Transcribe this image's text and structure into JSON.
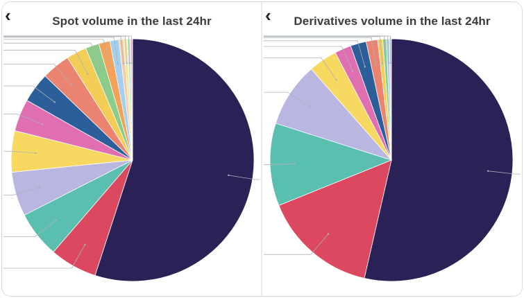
{
  "colors": {
    "navy": "#2a2257",
    "red": "#dc4860",
    "teal": "#5bbfb0",
    "lavender": "#b9b6e1",
    "yellow": "#f7d860",
    "pink": "#e06fb2",
    "blue": "#2c5f99",
    "salmon": "#ea8470",
    "gold": "#f4cd56",
    "green": "#8ccc8b",
    "orange": "#f4a15a",
    "lightblue": "#a4cfee",
    "peach": "#f8c9a2",
    "lightyellow": "#f6e7a4",
    "mint": "#c2e6c9",
    "lightpink": "#f3c3df",
    "label_line": "#aab0b8"
  },
  "icons": {
    "back": "chevron-left-icon"
  },
  "chart_data": [
    {
      "type": "pie",
      "title": "Spot volume in the last 24hr",
      "back_symbol": "‹",
      "start_angle_deg": 0,
      "values": [
        55.0,
        6.3,
        6.2,
        5.9,
        5.5,
        4.3,
        4.0,
        3.8,
        2.7,
        1.8,
        1.5,
        1.2,
        0.6,
        0.5,
        0.4,
        0.3
      ],
      "colors": [
        "navy",
        "red",
        "teal",
        "lavender",
        "yellow",
        "pink",
        "blue",
        "salmon",
        "gold",
        "green",
        "orange",
        "lightblue",
        "peach",
        "lightyellow",
        "mint",
        "lightpink"
      ],
      "legend": "none",
      "data_labels": "leader lines only (label text not visible)"
    },
    {
      "type": "pie",
      "title": "Derivatives volume in the last 24hr",
      "back_symbol": "‹",
      "start_angle_deg": 0,
      "values": [
        56.0,
        16.0,
        11.5,
        9.0,
        4.0,
        2.3,
        2.2,
        1.6,
        0.7,
        0.5,
        0.4,
        0.3
      ],
      "colors": [
        "navy",
        "red",
        "teal",
        "lavender",
        "yellow",
        "pink",
        "blue",
        "salmon",
        "gold",
        "green",
        "lightblue",
        "lightpink"
      ],
      "legend": "none",
      "data_labels": "leader lines only (label text not visible)"
    }
  ]
}
